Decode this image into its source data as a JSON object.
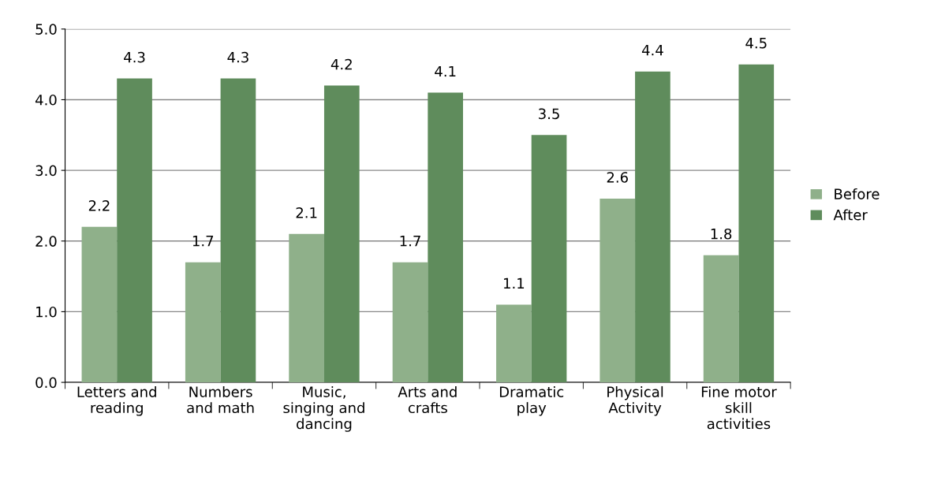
{
  "chart_data": {
    "type": "bar",
    "categories": [
      "Letters and\nreading",
      "Numbers\nand math",
      "Music,\nsinging and\ndancing",
      "Arts and\ncrafts",
      "Dramatic\nplay",
      "Physical\nActivity",
      "Fine motor\nskill\nactivities"
    ],
    "series": [
      {
        "name": "Before",
        "color": "#8fb08a",
        "values": [
          2.2,
          1.7,
          2.1,
          1.7,
          1.1,
          2.6,
          1.8
        ]
      },
      {
        "name": "After",
        "color": "#5f8c5c",
        "values": [
          4.3,
          4.3,
          4.2,
          4.1,
          3.5,
          4.4,
          4.5
        ]
      }
    ],
    "ylim": [
      0,
      5
    ],
    "yticks": [
      {
        "value": 0,
        "label": "0.0"
      },
      {
        "value": 1,
        "label": "1.0"
      },
      {
        "value": 2,
        "label": "2.0"
      },
      {
        "value": 3,
        "label": "3.0"
      },
      {
        "value": 4,
        "label": "4.0"
      },
      {
        "value": 5,
        "label": "5.0"
      }
    ],
    "grid": "y",
    "legend": "right",
    "data_labels": true
  }
}
